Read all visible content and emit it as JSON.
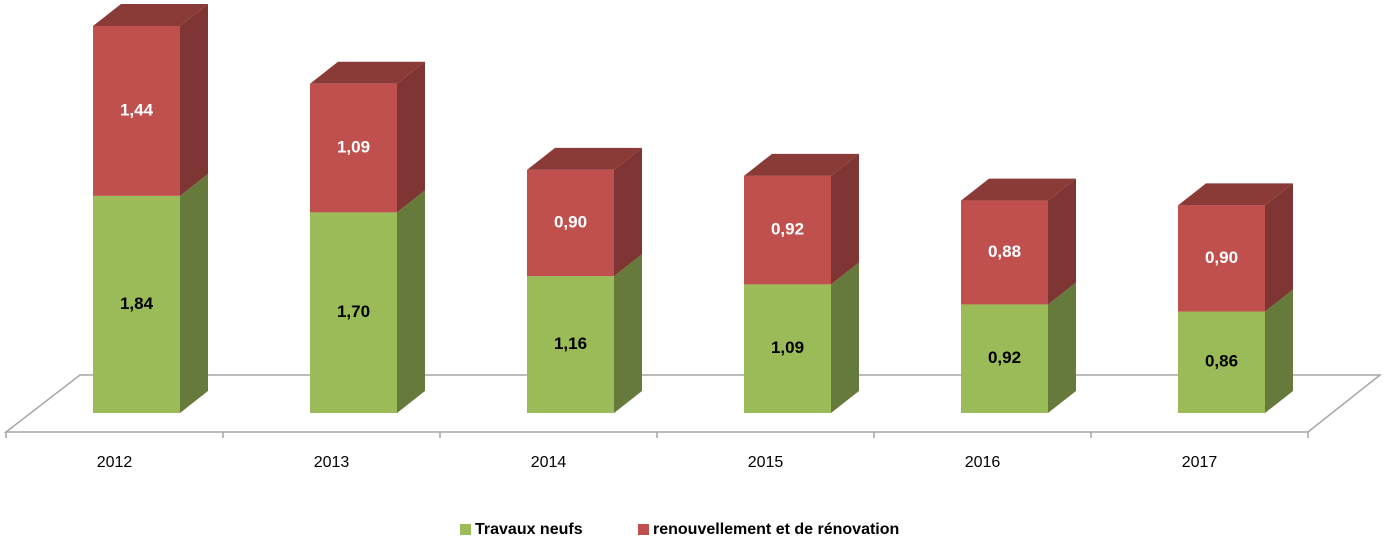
{
  "chart_data": {
    "type": "bar3d_stacked",
    "categories": [
      "2012",
      "2013",
      "2014",
      "2015",
      "2016",
      "2017"
    ],
    "series": [
      {
        "name": "Travaux neufs",
        "color": "#9bbb59",
        "values": [
          1.84,
          1.7,
          1.16,
          1.09,
          0.92,
          0.86
        ],
        "value_labels": [
          "1,84",
          "1,70",
          "1,16",
          "1,09",
          "0,92",
          "0,86"
        ]
      },
      {
        "name": "renouvellement et de rénovation",
        "color": "#c0504d",
        "values": [
          1.44,
          1.09,
          0.9,
          0.92,
          0.88,
          0.9
        ],
        "value_labels": [
          "1,44",
          "1,09",
          "0,90",
          "0,92",
          "0,88",
          "0,90"
        ]
      }
    ],
    "legend": "bottom"
  }
}
